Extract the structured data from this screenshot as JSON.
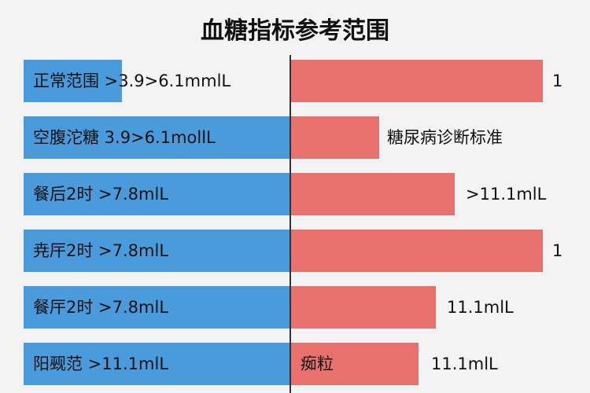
{
  "title": "血糖指标参考范围",
  "rows": [
    {
      "left": "正常范围 >3.9>6.1mmlL",
      "right": [
        "1"
      ]
    },
    {
      "left": "空腹沱糖 3.9>6.1mollL",
      "right": [
        "糖尿病诊断标准"
      ]
    },
    {
      "left": "餐后2时 >7.8mlL",
      "right": [
        ">11.1mlL"
      ]
    },
    {
      "left": "尭厈2时 >7.8mlL",
      "right": [
        "1"
      ]
    },
    {
      "left": "餐厈2时 >7.8mlL",
      "right": [
        "11.1mlL"
      ]
    },
    {
      "left": "阳觋范 >11.1mlL",
      "right": [
        "㾒粒",
        "11.1mlL"
      ]
    }
  ]
}
